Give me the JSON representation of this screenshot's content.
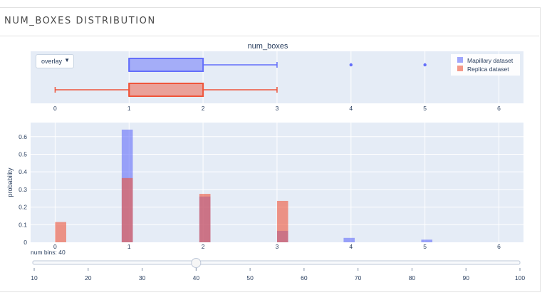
{
  "section_title": "NUM_BOXES DISTRIBUTION",
  "dropdown": {
    "selected": "overlay",
    "arrow": "▼"
  },
  "slider": {
    "label_prefix": "num bins: ",
    "value": 40,
    "min": 10,
    "max": 100,
    "ticks": [
      10,
      20,
      30,
      40,
      50,
      60,
      70,
      80,
      90,
      100
    ]
  },
  "colors": {
    "mapillary": "#636efa",
    "replica": "#EF553B",
    "plot_bg": "#e5ecf6",
    "axis_text": "#2a3f5f"
  },
  "chart_data": [
    {
      "type": "box",
      "title": "num_boxes",
      "xlim": [
        -0.3,
        6.3
      ],
      "xticks": [
        0,
        1,
        2,
        3,
        4,
        5,
        6
      ],
      "legend": {
        "position": "top-right"
      },
      "series": [
        {
          "name": "Mapillary dataset",
          "q1": 1,
          "median": 1,
          "q3": 2,
          "whisker_low": 1,
          "whisker_high": 3,
          "outliers": [
            4,
            5
          ]
        },
        {
          "name": "Replica dataset",
          "q1": 1,
          "median": 1,
          "q3": 2,
          "whisker_low": 0,
          "whisker_high": 3,
          "outliers": []
        }
      ]
    },
    {
      "type": "bar",
      "barmode": "overlay",
      "xlabel": "",
      "ylabel": "probability",
      "xlim": [
        -0.3,
        6.3
      ],
      "ylim": [
        0,
        0.68
      ],
      "xticks": [
        0,
        1,
        2,
        3,
        4,
        5,
        6
      ],
      "yticks": [
        0,
        0.1,
        0.2,
        0.3,
        0.4,
        0.5,
        0.6
      ],
      "ytick_labels": [
        "0",
        "0.1",
        "0.2",
        "0.3",
        "0.4",
        "0.5",
        "0.6"
      ],
      "bin_width": 0.15,
      "series": [
        {
          "name": "Mapillary dataset",
          "bin_starts": [
            0.9,
            1.95,
            3.0,
            3.9,
            4.95
          ],
          "values": [
            0.64,
            0.26,
            0.065,
            0.025,
            0.015
          ]
        },
        {
          "name": "Replica dataset",
          "bin_starts": [
            0.0,
            0.9,
            1.95,
            3.0
          ],
          "values": [
            0.115,
            0.365,
            0.275,
            0.235
          ]
        }
      ]
    }
  ]
}
